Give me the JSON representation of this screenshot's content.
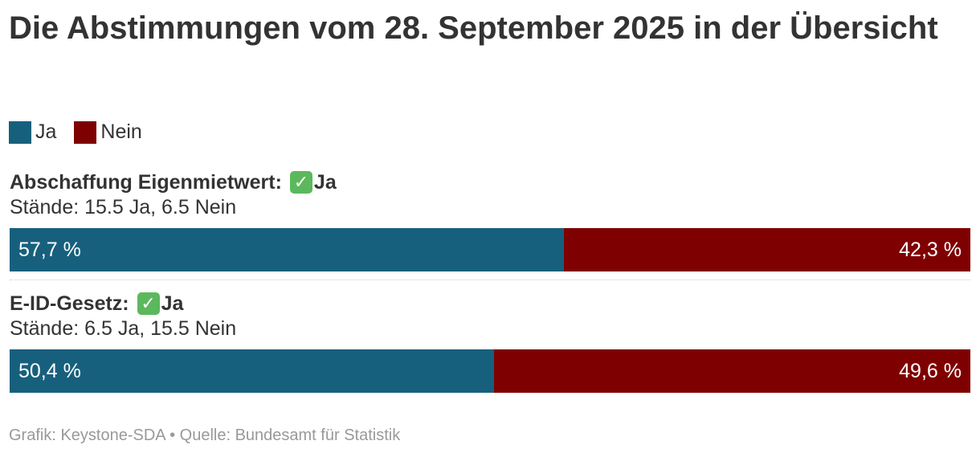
{
  "title": "Die Abstimmungen vom 28. September 2025 in der Übersicht",
  "colors": {
    "yes": "#17607d",
    "no": "#7f0000"
  },
  "legend": [
    {
      "label": "Ja",
      "color": "#17607d"
    },
    {
      "label": "Nein",
      "color": "#7f0000"
    }
  ],
  "chart_data": {
    "type": "bar",
    "stacked": true,
    "orientation": "horizontal",
    "categories": [
      "Abschaffung Eigenmietwert:",
      "E-ID-Gesetz:"
    ],
    "series": [
      {
        "name": "Ja",
        "values": [
          57.7,
          50.4
        ]
      },
      {
        "name": "Nein",
        "values": [
          42.3,
          49.6
        ]
      }
    ],
    "xlim": [
      0,
      100
    ]
  },
  "votes": [
    {
      "name": "Abschaffung Eigenmietwert:",
      "result": "Ja",
      "result_icon": "check-mark-icon",
      "staende": "Stände: 15.5 Ja, 6.5 Nein",
      "yes_label": "57,7 %",
      "no_label": "42,3 %"
    },
    {
      "name": "E-ID-Gesetz:",
      "result": "Ja",
      "result_icon": "check-mark-icon",
      "staende": "Stände: 6.5 Ja, 15.5 Nein",
      "yes_label": "50,4 %",
      "no_label": "49,6 %"
    }
  ],
  "footer": "Grafik: Keystone-SDA • Quelle: Bundesamt für Statistik"
}
